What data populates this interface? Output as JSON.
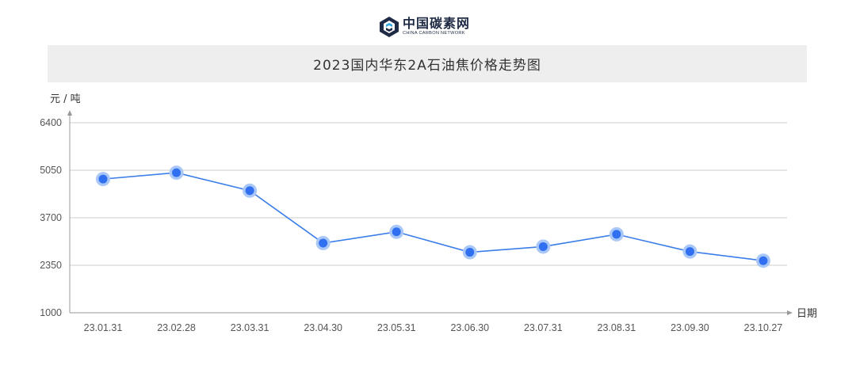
{
  "brand": {
    "name_cn": "中国碳素网",
    "name_en": "CHINA CARBON NETWORK"
  },
  "chart_data": {
    "type": "line",
    "title": "2023国内华东2A石油焦价格走势图",
    "ylabel": "元 / 吨",
    "xlabel": "日期",
    "categories": [
      "23.01.31",
      "23.02.28",
      "23.03.31",
      "23.04.30",
      "23.05.31",
      "23.06.30",
      "23.07.31",
      "23.08.31",
      "23.09.30",
      "23.10.27"
    ],
    "series": [
      {
        "values": [
          4800,
          4980,
          4470,
          2980,
          3300,
          2720,
          2880,
          3230,
          2740,
          2480
        ]
      }
    ],
    "yticks": [
      1000,
      2350,
      3700,
      5050,
      6400
    ],
    "ylim": [
      1000,
      6400
    ],
    "grid": true,
    "colors": {
      "line": "#3a7de8",
      "point": "#2f6ff0",
      "halo": "#a9c7f7",
      "grid": "#cccccc",
      "axis": "#999999"
    }
  }
}
